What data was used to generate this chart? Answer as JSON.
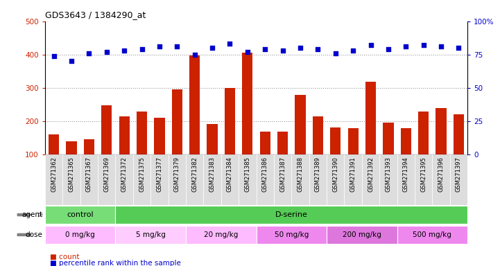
{
  "title": "GDS3643 / 1384290_at",
  "samples": [
    "GSM271362",
    "GSM271365",
    "GSM271367",
    "GSM271369",
    "GSM271372",
    "GSM271375",
    "GSM271377",
    "GSM271379",
    "GSM271382",
    "GSM271383",
    "GSM271384",
    "GSM271385",
    "GSM271386",
    "GSM271387",
    "GSM271388",
    "GSM271389",
    "GSM271390",
    "GSM271391",
    "GSM271392",
    "GSM271393",
    "GSM271394",
    "GSM271395",
    "GSM271396",
    "GSM271397"
  ],
  "counts": [
    160,
    140,
    145,
    248,
    215,
    228,
    210,
    295,
    398,
    192,
    300,
    405,
    168,
    168,
    278,
    215,
    180,
    178,
    318,
    196,
    178,
    228,
    240,
    220
  ],
  "percentile": [
    74,
    70,
    76,
    77,
    78,
    79,
    81,
    81,
    75,
    80,
    83,
    77,
    79,
    78,
    80,
    79,
    76,
    78,
    82,
    79,
    81,
    82,
    81,
    80
  ],
  "bar_color": "#cc2200",
  "dot_color": "#0000cc",
  "ylim_left": [
    100,
    500
  ],
  "ylim_right": [
    0,
    100
  ],
  "yticks_left": [
    100,
    200,
    300,
    400,
    500
  ],
  "yticks_right": [
    0,
    25,
    50,
    75,
    100
  ],
  "ytick_labels_right": [
    "0",
    "25",
    "50",
    "75",
    "100%"
  ],
  "agent_groups": [
    {
      "label": "control",
      "start": 0,
      "end": 4,
      "color": "#77dd77"
    },
    {
      "label": "D-serine",
      "start": 4,
      "end": 24,
      "color": "#55cc55"
    }
  ],
  "dose_groups": [
    {
      "label": "0 mg/kg",
      "start": 0,
      "end": 4,
      "color": "#ffbbff"
    },
    {
      "label": "5 mg/kg",
      "start": 4,
      "end": 8,
      "color": "#ffccff"
    },
    {
      "label": "20 mg/kg",
      "start": 8,
      "end": 12,
      "color": "#ffbbff"
    },
    {
      "label": "50 mg/kg",
      "start": 12,
      "end": 16,
      "color": "#ee88ee"
    },
    {
      "label": "200 mg/kg",
      "start": 16,
      "end": 20,
      "color": "#dd77dd"
    },
    {
      "label": "500 mg/kg",
      "start": 20,
      "end": 24,
      "color": "#ee88ee"
    }
  ],
  "grid_color": "#999999",
  "tick_color_left": "#cc2200",
  "tick_color_right": "#0000cc",
  "xticklabel_bg": "#dddddd"
}
